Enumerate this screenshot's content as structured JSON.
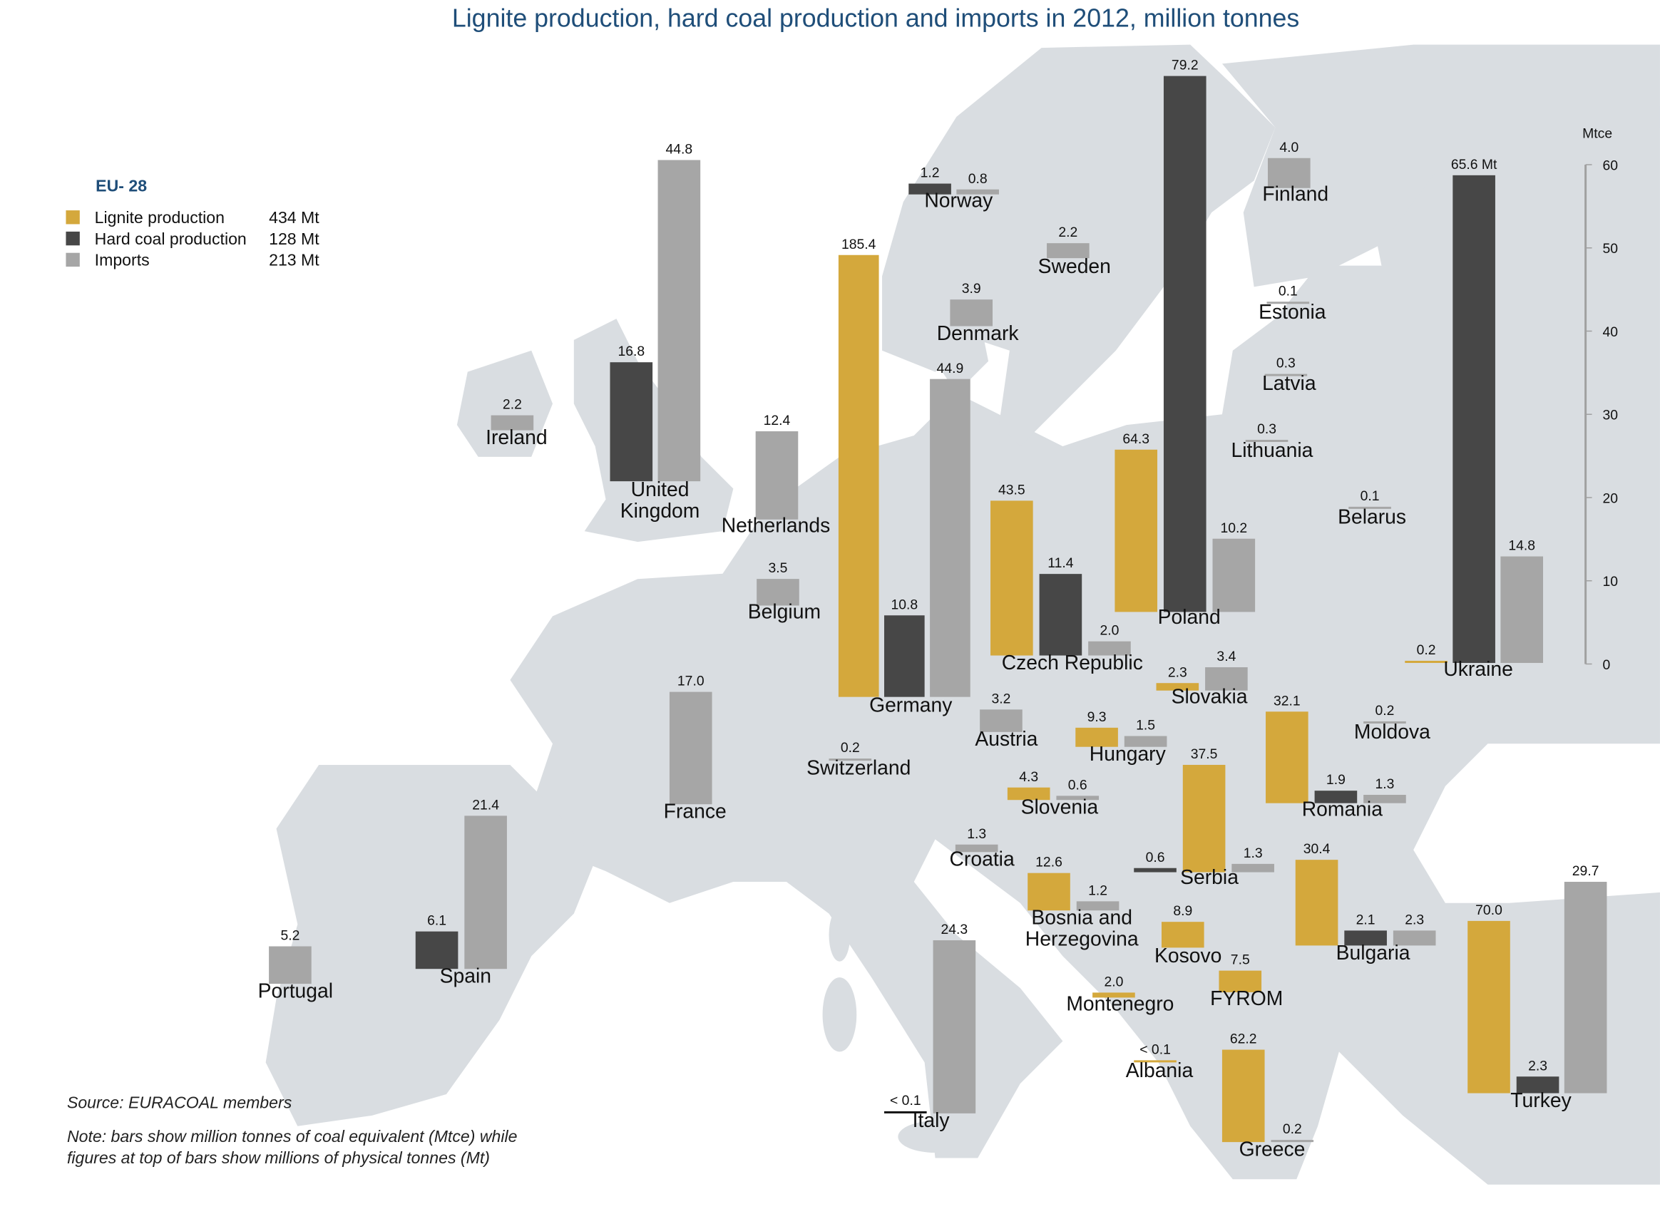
{
  "title": "Lignite production, hard coal production and imports in 2012, million tonnes",
  "legend": {
    "heading": "EU- 28",
    "items": [
      {
        "key": "lignite",
        "label": "Lignite production",
        "value": "434 Mt"
      },
      {
        "key": "hard",
        "label": "Hard coal production",
        "value": "128 Mt"
      },
      {
        "key": "imports",
        "label": "Imports",
        "value": "213 Mt"
      }
    ]
  },
  "colors": {
    "lignite": "#d4a83c",
    "hard": "#474747",
    "imports": "#a6a6a6",
    "land": "#d9dde1",
    "title": "#1f4e79"
  },
  "source": "Source: EURACOAL members",
  "note": [
    "Note: bars show million tonnes of coal equivalent (Mtce) while",
    "figures at top of bars show millions of physical tonnes (Mt)"
  ],
  "chart_data": {
    "type": "bar",
    "title": "Lignite production, hard coal production and imports in 2012, million tonnes",
    "ylabel": "Mtce",
    "ylim": [
      0,
      60
    ],
    "yticks": [
      "0",
      "10",
      "20",
      "30",
      "40",
      "50",
      "60"
    ],
    "series_names": [
      "Lignite production",
      "Hard coal production",
      "Imports"
    ],
    "countries": [
      {
        "name": "Ireland",
        "bars": [
          {
            "type": "imports",
            "mt": "2.2",
            "mtce": 1.8
          }
        ]
      },
      {
        "name": "United Kingdom",
        "lines": [
          "United",
          "Kingdom"
        ],
        "bars": [
          {
            "type": "hard",
            "mt": "16.8",
            "mtce": 14.3
          },
          {
            "type": "imports",
            "mt": "44.8",
            "mtce": 38.6
          }
        ]
      },
      {
        "name": "Netherlands",
        "bars": [
          {
            "type": "imports",
            "mt": "12.4",
            "mtce": 10.6
          }
        ]
      },
      {
        "name": "Belgium",
        "bars": [
          {
            "type": "imports",
            "mt": "3.5",
            "mtce": 3.2
          }
        ]
      },
      {
        "name": "Germany",
        "bars": [
          {
            "type": "lignite",
            "mt": "185.4",
            "mtce": 53.1
          },
          {
            "type": "hard",
            "mt": "10.8",
            "mtce": 9.8
          },
          {
            "type": "imports",
            "mt": "44.9",
            "mtce": 38.2
          }
        ]
      },
      {
        "name": "Norway",
        "bars": [
          {
            "type": "hard",
            "mt": "1.2",
            "mtce": 1.3
          },
          {
            "type": "imports",
            "mt": "0.8",
            "mtce": 0.6
          }
        ]
      },
      {
        "name": "Denmark",
        "bars": [
          {
            "type": "imports",
            "mt": "3.9",
            "mtce": 3.2
          }
        ]
      },
      {
        "name": "Sweden",
        "bars": [
          {
            "type": "imports",
            "mt": "2.2",
            "mtce": 1.8
          }
        ]
      },
      {
        "name": "Finland",
        "bars": [
          {
            "type": "imports",
            "mt": "4.0",
            "mtce": 3.6
          }
        ]
      },
      {
        "name": "Estonia",
        "bars": [
          {
            "type": "imports",
            "mt": "0.1",
            "mtce": 0.1
          }
        ]
      },
      {
        "name": "Latvia",
        "bars": [
          {
            "type": "imports",
            "mt": "0.3",
            "mtce": 0.2
          }
        ]
      },
      {
        "name": "Lithuania",
        "bars": [
          {
            "type": "imports",
            "mt": "0.3",
            "mtce": 0.2
          }
        ]
      },
      {
        "name": "Belarus",
        "bars": [
          {
            "type": "imports",
            "mt": "0.1",
            "mtce": 0.1
          }
        ]
      },
      {
        "name": "Poland",
        "bars": [
          {
            "type": "lignite",
            "mt": "64.3",
            "mtce": 19.5
          },
          {
            "type": "hard",
            "mt": "79.2",
            "mtce": 64.4
          },
          {
            "type": "imports",
            "mt": "10.2",
            "mtce": 8.8
          }
        ]
      },
      {
        "name": "Czech Republic",
        "bars": [
          {
            "type": "lignite",
            "mt": "43.5",
            "mtce": 18.6
          },
          {
            "type": "hard",
            "mt": "11.4",
            "mtce": 9.8
          },
          {
            "type": "imports",
            "mt": "2.0",
            "mtce": 1.7
          }
        ]
      },
      {
        "name": "Ukraine",
        "bars": [
          {
            "type": "lignite",
            "mt": "0.2",
            "mtce": 0.1
          },
          {
            "type": "hard",
            "mt": "65.6 Mt",
            "mtce": 58.6
          },
          {
            "type": "imports",
            "mt": "14.8",
            "mtce": 12.8
          }
        ]
      },
      {
        "name": "France",
        "bars": [
          {
            "type": "imports",
            "mt": "17.0",
            "mtce": 13.5
          }
        ]
      },
      {
        "name": "Switzerland",
        "bars": [
          {
            "type": "imports",
            "mt": "0.2",
            "mtce": 0.1
          }
        ]
      },
      {
        "name": "Austria",
        "bars": [
          {
            "type": "imports",
            "mt": "3.2",
            "mtce": 2.7
          }
        ]
      },
      {
        "name": "Slovakia",
        "bars": [
          {
            "type": "lignite",
            "mt": "2.3",
            "mtce": 0.9
          },
          {
            "type": "imports",
            "mt": "3.4",
            "mtce": 2.8
          }
        ]
      },
      {
        "name": "Hungary",
        "bars": [
          {
            "type": "lignite",
            "mt": "9.3",
            "mtce": 2.3
          },
          {
            "type": "imports",
            "mt": "1.5",
            "mtce": 1.3
          }
        ]
      },
      {
        "name": "Moldova",
        "bars": [
          {
            "type": "imports",
            "mt": "0.2",
            "mtce": 0.1
          }
        ]
      },
      {
        "name": "Slovenia",
        "bars": [
          {
            "type": "lignite",
            "mt": "4.3",
            "mtce": 1.5
          },
          {
            "type": "imports",
            "mt": "0.6",
            "mtce": 0.5
          }
        ]
      },
      {
        "name": "Romania",
        "bars": [
          {
            "type": "lignite",
            "mt": "32.1",
            "mtce": 11.0
          },
          {
            "type": "hard",
            "mt": "1.9",
            "mtce": 1.5
          },
          {
            "type": "imports",
            "mt": "1.3",
            "mtce": 1.0
          }
        ]
      },
      {
        "name": "Croatia",
        "bars": [
          {
            "type": "imports",
            "mt": "1.3",
            "mtce": 0.9
          }
        ]
      },
      {
        "name": "Serbia",
        "bars": [
          {
            "type": "hard",
            "mt": "0.6",
            "mtce": 0.5
          },
          {
            "type": "lignite",
            "mt": "37.5",
            "mtce": 12.9
          },
          {
            "type": "imports",
            "mt": "1.3",
            "mtce": 1.0
          }
        ]
      },
      {
        "name": "Bosnia and Herzegovina",
        "lines": [
          "Bosnia and",
          "Herzegovina"
        ],
        "bars": [
          {
            "type": "lignite",
            "mt": "12.6",
            "mtce": 4.5
          },
          {
            "type": "imports",
            "mt": "1.2",
            "mtce": 1.1
          }
        ]
      },
      {
        "name": "Kosovo",
        "bars": [
          {
            "type": "lignite",
            "mt": "8.9",
            "mtce": 3.1
          }
        ]
      },
      {
        "name": "FYROM",
        "bars": [
          {
            "type": "lignite",
            "mt": "7.5",
            "mtce": 2.6
          }
        ]
      },
      {
        "name": "Montenegro",
        "bars": [
          {
            "type": "lignite",
            "mt": "2.0",
            "mtce": 0.6
          }
        ]
      },
      {
        "name": "Albania",
        "bars": [
          {
            "type": "lignite",
            "mt": "< 0.1",
            "mtce": 0.05
          }
        ]
      },
      {
        "name": "Bulgaria",
        "bars": [
          {
            "type": "lignite",
            "mt": "30.4",
            "mtce": 10.3
          },
          {
            "type": "hard",
            "mt": "2.1",
            "mtce": 1.8
          },
          {
            "type": "imports",
            "mt": "2.3",
            "mtce": 1.8
          }
        ]
      },
      {
        "name": "Spain",
        "bars": [
          {
            "type": "hard",
            "mt": "6.1",
            "mtce": 4.5
          },
          {
            "type": "imports",
            "mt": "21.4",
            "mtce": 18.4
          }
        ]
      },
      {
        "name": "Portugal",
        "bars": [
          {
            "type": "imports",
            "mt": "5.2",
            "mtce": 4.5
          }
        ]
      },
      {
        "name": "Italy",
        "bars": [
          {
            "type": "hard",
            "mt": "< 0.1",
            "mtce": 0.05
          },
          {
            "type": "imports",
            "mt": "24.3",
            "mtce": 20.8
          }
        ]
      },
      {
        "name": "Greece",
        "bars": [
          {
            "type": "lignite",
            "mt": "62.2",
            "mtce": 11.1
          },
          {
            "type": "imports",
            "mt": "0.2",
            "mtce": 0.1
          }
        ]
      },
      {
        "name": "Turkey",
        "bars": [
          {
            "type": "lignite",
            "mt": "70.0",
            "mtce": 20.7
          },
          {
            "type": "hard",
            "mt": "2.3",
            "mtce": 2.0
          },
          {
            "type": "imports",
            "mt": "29.7",
            "mtce": 25.4
          }
        ]
      }
    ]
  }
}
